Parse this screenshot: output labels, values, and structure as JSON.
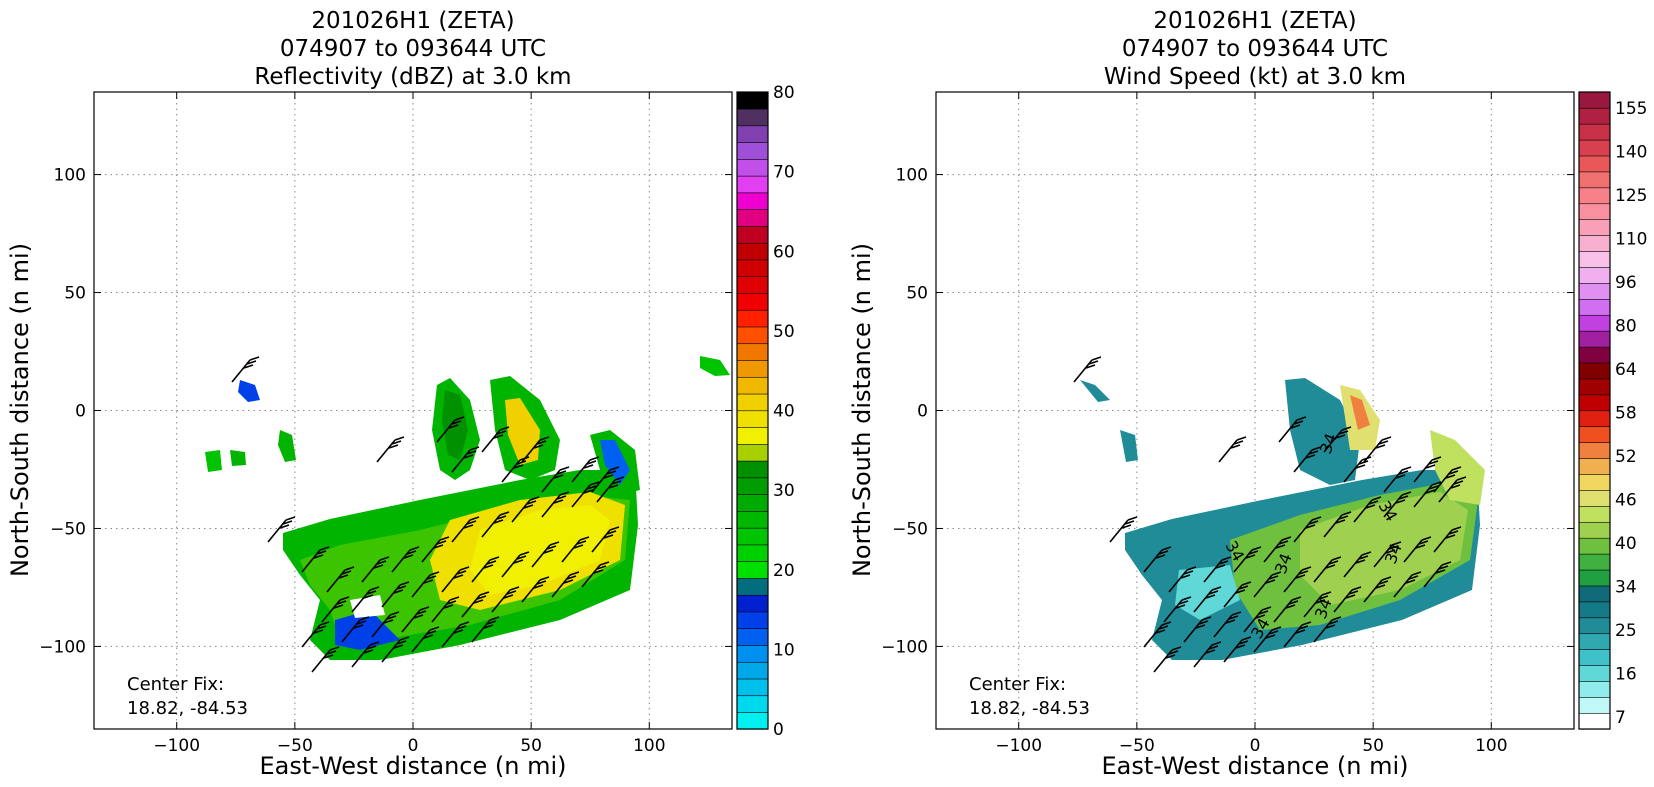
{
  "chart_data": [
    {
      "type": "heatmap",
      "panel": "left",
      "title": [
        "201026H1 (ZETA)",
        "074907 to 093644 UTC",
        "Reflectivity (dBZ) at 3.0 km"
      ],
      "xlabel": "East-West distance (n mi)",
      "ylabel": "North-South distance (n mi)",
      "xlim": [
        -135,
        135
      ],
      "ylim": [
        -135,
        135
      ],
      "xticks": [
        -100,
        -50,
        0,
        50,
        100
      ],
      "yticks": [
        -100,
        -50,
        0,
        50,
        100
      ],
      "xtick_labels": [
        "−100",
        "−50",
        "0",
        "50",
        "100"
      ],
      "ytick_labels": [
        "−100",
        "−50",
        "0",
        "50",
        "100"
      ],
      "grid": true,
      "annotation": [
        "Center Fix:",
        "18.82, -84.53"
      ],
      "colorbar": {
        "ticks": [
          0,
          10,
          20,
          30,
          40,
          50,
          60,
          70,
          80
        ],
        "tick_labels": [
          "0",
          "10",
          "20",
          "30",
          "40",
          "50",
          "60",
          "70",
          "80"
        ],
        "colors": [
          "#00f0f0",
          "#00d8ee",
          "#00c0ec",
          "#00a8ea",
          "#0090f0",
          "#0060f0",
          "#0040e8",
          "#0020d0",
          "#006e7e",
          "#00e000",
          "#00d000",
          "#00c400",
          "#00b800",
          "#00aa00",
          "#009c00",
          "#009000",
          "#a8d000",
          "#f0f000",
          "#f0e000",
          "#f0d000",
          "#f0b800",
          "#f09800",
          "#f07800",
          "#ff5000",
          "#ff2000",
          "#f00000",
          "#e00000",
          "#d00000",
          "#c00000",
          "#c00020",
          "#e00080",
          "#f000d0",
          "#e040f0",
          "#c050e8",
          "#a050d8",
          "#8040b0",
          "#503060",
          "#000000"
        ],
        "min": 0,
        "max": 80
      },
      "data_layer": "radar reflectivity swath with wind barbs"
    },
    {
      "type": "heatmap",
      "panel": "right",
      "title": [
        "201026H1 (ZETA)",
        "074907 to 093644 UTC",
        "Wind Speed (kt) at 3.0 km"
      ],
      "xlabel": "East-West distance (n mi)",
      "ylabel": "North-South distance (n mi)",
      "xlim": [
        -135,
        135
      ],
      "ylim": [
        -135,
        135
      ],
      "xticks": [
        -100,
        -50,
        0,
        50,
        100
      ],
      "yticks": [
        -100,
        -50,
        0,
        50,
        100
      ],
      "xtick_labels": [
        "−100",
        "−50",
        "0",
        "50",
        "100"
      ],
      "ytick_labels": [
        "−100",
        "−50",
        "0",
        "50",
        "100"
      ],
      "grid": true,
      "annotation": [
        "Center Fix:",
        "18.82, -84.53"
      ],
      "contour_labels": [
        "34",
        "34",
        "34",
        "34",
        "34",
        "34",
        "34"
      ],
      "colorbar": {
        "tick_labels": [
          "7",
          "16",
          "25",
          "34",
          "40",
          "46",
          "52",
          "58",
          "64",
          "80",
          "96",
          "110",
          "125",
          "140",
          "155"
        ],
        "colors": [
          "#ffffff",
          "#c0f8f8",
          "#90ecec",
          "#60d8d8",
          "#40c0c8",
          "#30a8b0",
          "#208c98",
          "#157a88",
          "#106a78",
          "#20a040",
          "#40b040",
          "#70c040",
          "#a0d050",
          "#c0e060",
          "#e0e070",
          "#f0d860",
          "#f0b050",
          "#f08040",
          "#f05020",
          "#e02010",
          "#c00000",
          "#a00000",
          "#800000",
          "#800040",
          "#a020a0",
          "#c040e0",
          "#d070f0",
          "#e090f0",
          "#f0b0f0",
          "#f8c0e8",
          "#f8b0d0",
          "#f8a0b8",
          "#f890a0",
          "#f88088",
          "#f07070",
          "#e85858",
          "#d84050",
          "#c83048",
          "#b02040",
          "#981840"
        ]
      },
      "data_layer": "Doppler wind speed swath with wind barbs and 34 kt contours"
    }
  ]
}
